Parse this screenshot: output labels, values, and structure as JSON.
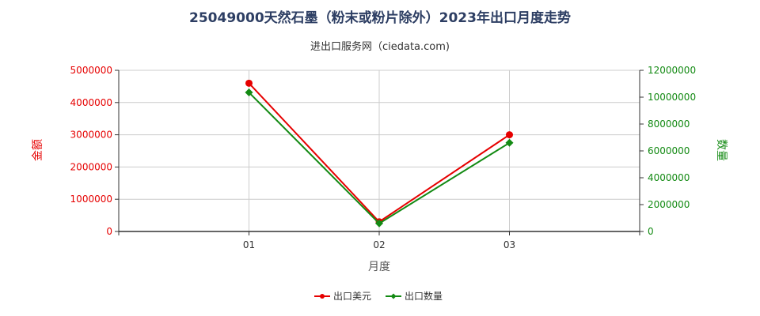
{
  "chart_data": {
    "type": "line",
    "title": "25049000天然石墨（粉末或粉片除外）2023年出口月度走势",
    "subtitle": "进出口服务网（ciedata.com)",
    "xlabel": "月度",
    "categories": [
      "01",
      "02",
      "03"
    ],
    "y_left": {
      "label": "金额",
      "ylim": [
        0,
        5000000
      ],
      "ticks": [
        0,
        1000000,
        2000000,
        3000000,
        4000000,
        5000000
      ]
    },
    "y_right": {
      "label": "数量",
      "ylim": [
        0,
        12000000
      ],
      "ticks": [
        0,
        2000000,
        4000000,
        6000000,
        8000000,
        10000000,
        12000000
      ]
    },
    "series": [
      {
        "name": "出口美元",
        "axis": "left",
        "color": "#e60000",
        "values": [
          4600000,
          300000,
          3000000
        ]
      },
      {
        "name": "出口数量",
        "axis": "right",
        "color": "#138a13",
        "values": [
          10350000,
          600000,
          6600000
        ]
      }
    ],
    "grid": true,
    "legend_position": "bottom-center"
  },
  "colors": {
    "left_axis": "#e60000",
    "right_axis": "#138a13",
    "grid": "#cccccc"
  }
}
